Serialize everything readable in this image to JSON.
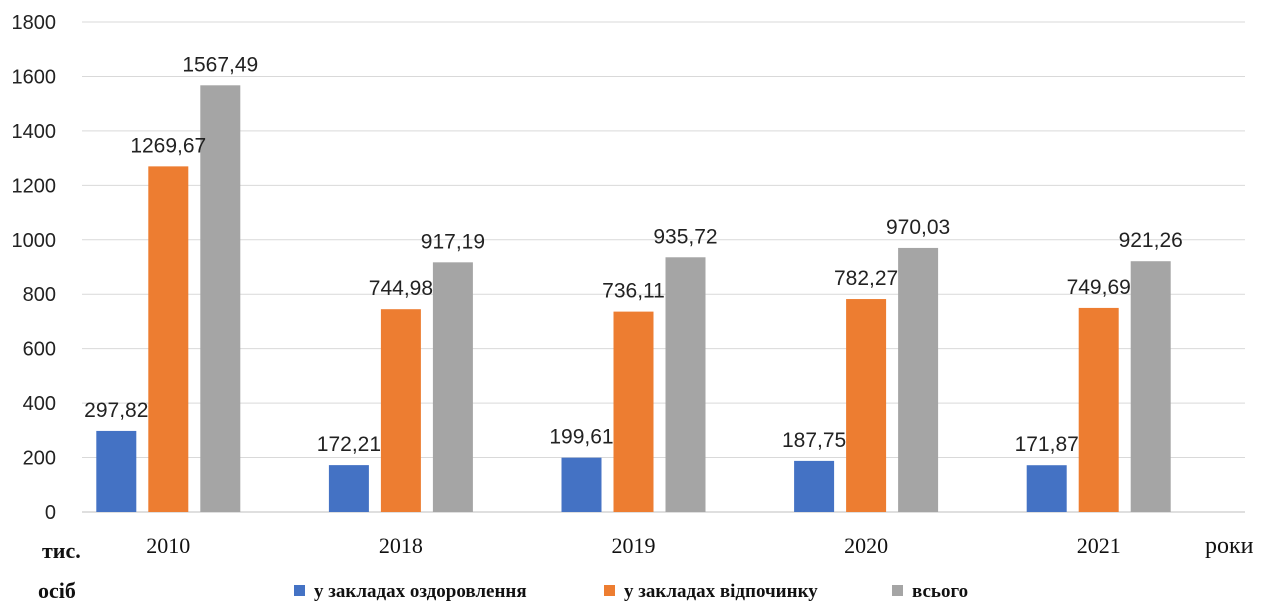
{
  "chart_data": {
    "type": "bar",
    "categories": [
      "2010",
      "2018",
      "2019",
      "2020",
      "2021"
    ],
    "series": [
      {
        "name": "у закладах оздоровлення",
        "color": "#4472C4",
        "values": [
          297.82,
          172.21,
          199.61,
          187.75,
          171.87
        ],
        "labels": [
          "297,82",
          "172,21",
          "199,61",
          "187,75",
          "171,87"
        ]
      },
      {
        "name": "у закладах відпочинку",
        "color": "#ED7D31",
        "values": [
          1269.67,
          744.98,
          736.11,
          782.27,
          749.69
        ],
        "labels": [
          "1269,67",
          "744,98",
          "736,11",
          "782,27",
          "749,69"
        ]
      },
      {
        "name": "всього",
        "color": "#A5A5A5",
        "values": [
          1567.49,
          917.19,
          935.72,
          970.03,
          921.26
        ],
        "labels": [
          "1567,49",
          "917,19",
          "935,72",
          "970,03",
          "921,26"
        ]
      }
    ],
    "ylim": [
      0,
      1800
    ],
    "yticks": [
      0,
      200,
      400,
      600,
      800,
      1000,
      1200,
      1400,
      1600,
      1800
    ],
    "xlabel": "роки",
    "ylabel_line1": "тис.",
    "ylabel_line2": "осіб",
    "grid": true,
    "legend_position": "bottom"
  }
}
